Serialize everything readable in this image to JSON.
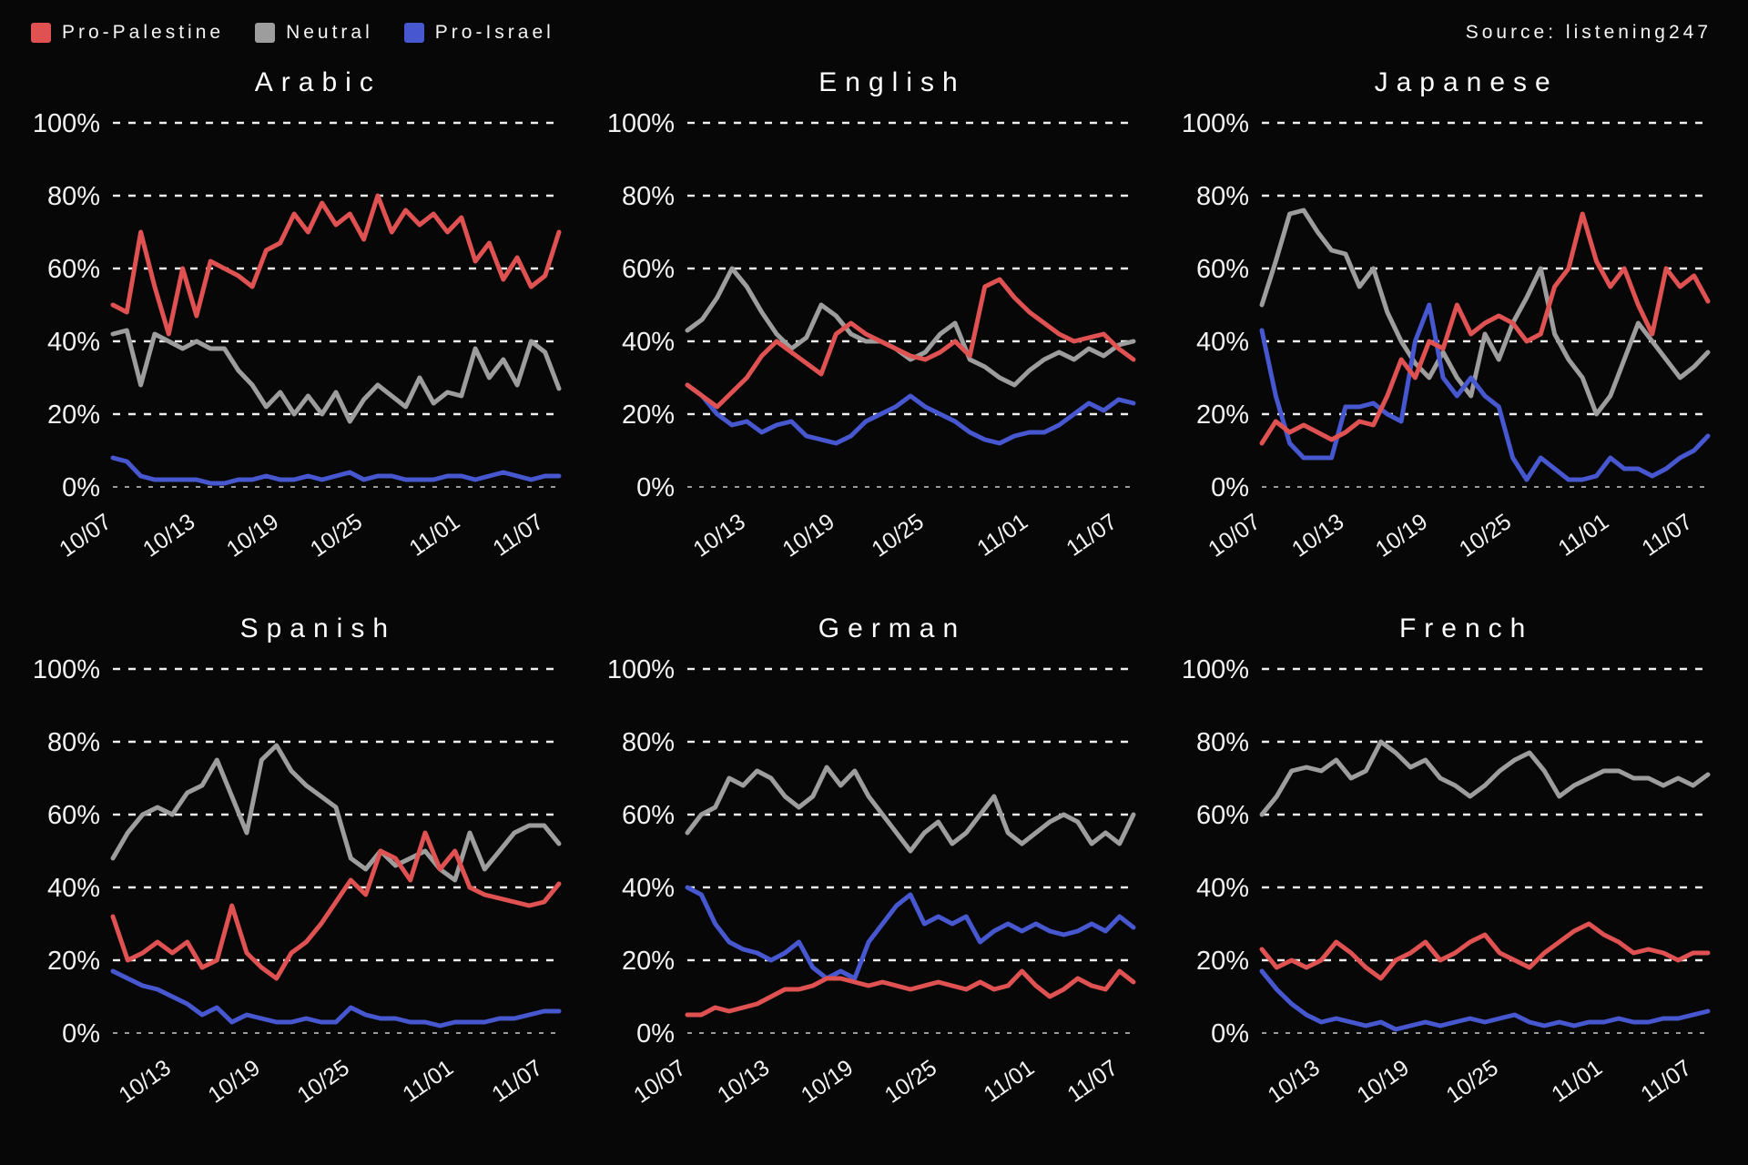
{
  "header": {
    "source": "Source: listening247"
  },
  "legend": {
    "items": [
      {
        "label": "Pro-Palestine",
        "color": "#e05252"
      },
      {
        "label": "Neutral",
        "color": "#9d9d9d"
      },
      {
        "label": "Pro-Israel",
        "color": "#4757cf"
      }
    ]
  },
  "chart_data": [
    {
      "type": "line",
      "title": "Arabic",
      "ylim": [
        0,
        100
      ],
      "y_ticks": [
        "0%",
        "20%",
        "40%",
        "60%",
        "80%",
        "100%"
      ],
      "x_ticks": [
        "10/07",
        "10/13",
        "10/19",
        "10/25",
        "11/01",
        "11/07"
      ],
      "x": [
        "10/07",
        "10/08",
        "10/09",
        "10/10",
        "10/11",
        "10/12",
        "10/13",
        "10/14",
        "10/15",
        "10/16",
        "10/17",
        "10/18",
        "10/19",
        "10/20",
        "10/21",
        "10/22",
        "10/23",
        "10/24",
        "10/25",
        "10/26",
        "10/27",
        "10/28",
        "10/29",
        "10/30",
        "10/31",
        "11/01",
        "11/02",
        "11/03",
        "11/04",
        "11/05",
        "11/06",
        "11/07",
        "11/08"
      ],
      "series": [
        {
          "name": "Pro-Palestine",
          "color": "#e05252",
          "values": [
            50,
            48,
            70,
            55,
            42,
            60,
            47,
            62,
            60,
            58,
            55,
            65,
            67,
            75,
            70,
            78,
            72,
            75,
            68,
            80,
            70,
            76,
            72,
            75,
            70,
            74,
            62,
            67,
            57,
            63,
            55,
            58,
            70
          ]
        },
        {
          "name": "Neutral",
          "color": "#9d9d9d",
          "values": [
            42,
            43,
            28,
            42,
            40,
            38,
            40,
            38,
            38,
            32,
            28,
            22,
            26,
            20,
            25,
            20,
            26,
            18,
            24,
            28,
            25,
            22,
            30,
            23,
            26,
            25,
            38,
            30,
            35,
            28,
            40,
            37,
            27
          ]
        },
        {
          "name": "Pro-Israel",
          "color": "#4757cf",
          "values": [
            8,
            7,
            3,
            2,
            2,
            2,
            2,
            1,
            1,
            2,
            2,
            3,
            2,
            2,
            3,
            2,
            3,
            4,
            2,
            3,
            3,
            2,
            2,
            2,
            3,
            3,
            2,
            3,
            4,
            3,
            2,
            3,
            3
          ]
        }
      ]
    },
    {
      "type": "line",
      "title": "English",
      "ylim": [
        0,
        100
      ],
      "y_ticks": [
        "0%",
        "20%",
        "40%",
        "60%",
        "80%",
        "100%"
      ],
      "x_ticks": [
        "10/13",
        "10/19",
        "10/25",
        "11/01",
        "11/07"
      ],
      "x": [
        "10/09",
        "10/10",
        "10/11",
        "10/12",
        "10/13",
        "10/14",
        "10/15",
        "10/16",
        "10/17",
        "10/18",
        "10/19",
        "10/20",
        "10/21",
        "10/22",
        "10/23",
        "10/24",
        "10/25",
        "10/26",
        "10/27",
        "10/28",
        "10/29",
        "10/30",
        "10/31",
        "11/01",
        "11/02",
        "11/03",
        "11/04",
        "11/05",
        "11/06",
        "11/07",
        "11/08"
      ],
      "series": [
        {
          "name": "Pro-Palestine",
          "color": "#e05252",
          "values": [
            28,
            25,
            22,
            26,
            30,
            36,
            40,
            37,
            34,
            31,
            42,
            45,
            42,
            40,
            38,
            36,
            35,
            37,
            40,
            36,
            55,
            57,
            52,
            48,
            45,
            42,
            40,
            41,
            42,
            38,
            35
          ]
        },
        {
          "name": "Neutral",
          "color": "#9d9d9d",
          "values": [
            43,
            46,
            52,
            60,
            55,
            48,
            42,
            38,
            41,
            50,
            47,
            42,
            40,
            40,
            38,
            35,
            37,
            42,
            45,
            35,
            33,
            30,
            28,
            32,
            35,
            37,
            35,
            38,
            36,
            39,
            40
          ]
        },
        {
          "name": "Pro-Israel",
          "color": "#4757cf",
          "values": [
            28,
            25,
            20,
            17,
            18,
            15,
            17,
            18,
            14,
            13,
            12,
            14,
            18,
            20,
            22,
            25,
            22,
            20,
            18,
            15,
            13,
            12,
            14,
            15,
            15,
            17,
            20,
            23,
            21,
            24,
            23
          ]
        }
      ]
    },
    {
      "type": "line",
      "title": "Japanese",
      "ylim": [
        0,
        100
      ],
      "y_ticks": [
        "0%",
        "20%",
        "40%",
        "60%",
        "80%",
        "100%"
      ],
      "x_ticks": [
        "10/07",
        "10/13",
        "10/19",
        "10/25",
        "11/01",
        "11/07"
      ],
      "x": [
        "10/07",
        "10/08",
        "10/09",
        "10/10",
        "10/11",
        "10/12",
        "10/13",
        "10/14",
        "10/15",
        "10/16",
        "10/17",
        "10/18",
        "10/19",
        "10/20",
        "10/21",
        "10/22",
        "10/23",
        "10/24",
        "10/25",
        "10/26",
        "10/27",
        "10/28",
        "10/29",
        "10/30",
        "10/31",
        "11/01",
        "11/02",
        "11/03",
        "11/04",
        "11/05",
        "11/06",
        "11/07",
        "11/08"
      ],
      "series": [
        {
          "name": "Pro-Palestine",
          "color": "#e05252",
          "values": [
            12,
            18,
            15,
            17,
            15,
            13,
            15,
            18,
            17,
            25,
            35,
            30,
            40,
            38,
            50,
            42,
            45,
            47,
            45,
            40,
            42,
            55,
            60,
            75,
            62,
            55,
            60,
            50,
            42,
            60,
            55,
            58,
            51
          ]
        },
        {
          "name": "Neutral",
          "color": "#9d9d9d",
          "values": [
            50,
            62,
            75,
            76,
            70,
            65,
            64,
            55,
            60,
            48,
            40,
            34,
            30,
            37,
            30,
            25,
            42,
            35,
            45,
            52,
            60,
            42,
            35,
            30,
            20,
            25,
            35,
            45,
            40,
            35,
            30,
            33,
            37
          ]
        },
        {
          "name": "Pro-Israel",
          "color": "#4757cf",
          "values": [
            43,
            25,
            12,
            8,
            8,
            8,
            22,
            22,
            23,
            20,
            18,
            40,
            50,
            30,
            25,
            30,
            25,
            22,
            8,
            2,
            8,
            5,
            2,
            2,
            3,
            8,
            5,
            5,
            3,
            5,
            8,
            10,
            14
          ]
        }
      ]
    },
    {
      "type": "line",
      "title": "Spanish",
      "ylim": [
        0,
        100
      ],
      "y_ticks": [
        "0%",
        "20%",
        "40%",
        "60%",
        "80%",
        "100%"
      ],
      "x_ticks": [
        "10/13",
        "10/19",
        "10/25",
        "11/01",
        "11/07"
      ],
      "x": [
        "10/09",
        "10/10",
        "10/11",
        "10/12",
        "10/13",
        "10/14",
        "10/15",
        "10/16",
        "10/17",
        "10/18",
        "10/19",
        "10/20",
        "10/21",
        "10/22",
        "10/23",
        "10/24",
        "10/25",
        "10/26",
        "10/27",
        "10/28",
        "10/29",
        "10/30",
        "10/31",
        "11/01",
        "11/02",
        "11/03",
        "11/04",
        "11/05",
        "11/06",
        "11/07",
        "11/08"
      ],
      "series": [
        {
          "name": "Pro-Palestine",
          "color": "#e05252",
          "values": [
            32,
            20,
            22,
            25,
            22,
            25,
            18,
            20,
            35,
            22,
            18,
            15,
            22,
            25,
            30,
            36,
            42,
            38,
            50,
            48,
            42,
            55,
            45,
            50,
            40,
            38,
            37,
            36,
            35,
            36,
            41
          ]
        },
        {
          "name": "Neutral",
          "color": "#9d9d9d",
          "values": [
            48,
            55,
            60,
            62,
            60,
            66,
            68,
            75,
            65,
            55,
            75,
            79,
            72,
            68,
            65,
            62,
            48,
            45,
            50,
            46,
            48,
            50,
            45,
            42,
            55,
            45,
            50,
            55,
            57,
            57,
            52
          ]
        },
        {
          "name": "Pro-Israel",
          "color": "#4757cf",
          "values": [
            17,
            15,
            13,
            12,
            10,
            8,
            5,
            7,
            3,
            5,
            4,
            3,
            3,
            4,
            3,
            3,
            7,
            5,
            4,
            4,
            3,
            3,
            2,
            3,
            3,
            3,
            4,
            4,
            5,
            6,
            6
          ]
        }
      ]
    },
    {
      "type": "line",
      "title": "German",
      "ylim": [
        0,
        100
      ],
      "y_ticks": [
        "0%",
        "20%",
        "40%",
        "60%",
        "80%",
        "100%"
      ],
      "x_ticks": [
        "10/07",
        "10/13",
        "10/19",
        "10/25",
        "11/01",
        "11/07"
      ],
      "x": [
        "10/07",
        "10/08",
        "10/09",
        "10/10",
        "10/11",
        "10/12",
        "10/13",
        "10/14",
        "10/15",
        "10/16",
        "10/17",
        "10/18",
        "10/19",
        "10/20",
        "10/21",
        "10/22",
        "10/23",
        "10/24",
        "10/25",
        "10/26",
        "10/27",
        "10/28",
        "10/29",
        "10/30",
        "10/31",
        "11/01",
        "11/02",
        "11/03",
        "11/04",
        "11/05",
        "11/06",
        "11/07",
        "11/08"
      ],
      "series": [
        {
          "name": "Pro-Palestine",
          "color": "#e05252",
          "values": [
            5,
            5,
            7,
            6,
            7,
            8,
            10,
            12,
            12,
            13,
            15,
            15,
            14,
            13,
            14,
            13,
            12,
            13,
            14,
            13,
            12,
            14,
            12,
            13,
            17,
            13,
            10,
            12,
            15,
            13,
            12,
            17,
            14
          ]
        },
        {
          "name": "Neutral",
          "color": "#9d9d9d",
          "values": [
            55,
            60,
            62,
            70,
            68,
            72,
            70,
            65,
            62,
            65,
            73,
            68,
            72,
            65,
            60,
            55,
            50,
            55,
            58,
            52,
            55,
            60,
            65,
            55,
            52,
            55,
            58,
            60,
            58,
            52,
            55,
            52,
            60
          ]
        },
        {
          "name": "Pro-Israel",
          "color": "#4757cf",
          "values": [
            40,
            38,
            30,
            25,
            23,
            22,
            20,
            22,
            25,
            18,
            15,
            17,
            15,
            25,
            30,
            35,
            38,
            30,
            32,
            30,
            32,
            25,
            28,
            30,
            28,
            30,
            28,
            27,
            28,
            30,
            28,
            32,
            29
          ]
        }
      ]
    },
    {
      "type": "line",
      "title": "French",
      "ylim": [
        0,
        100
      ],
      "y_ticks": [
        "0%",
        "20%",
        "40%",
        "60%",
        "80%",
        "100%"
      ],
      "x_ticks": [
        "10/13",
        "10/19",
        "10/25",
        "11/01",
        "11/07"
      ],
      "x": [
        "10/09",
        "10/10",
        "10/11",
        "10/12",
        "10/13",
        "10/14",
        "10/15",
        "10/16",
        "10/17",
        "10/18",
        "10/19",
        "10/20",
        "10/21",
        "10/22",
        "10/23",
        "10/24",
        "10/25",
        "10/26",
        "10/27",
        "10/28",
        "10/29",
        "10/30",
        "10/31",
        "11/01",
        "11/02",
        "11/03",
        "11/04",
        "11/05",
        "11/06",
        "11/07",
        "11/08"
      ],
      "series": [
        {
          "name": "Pro-Palestine",
          "color": "#e05252",
          "values": [
            23,
            18,
            20,
            18,
            20,
            25,
            22,
            18,
            15,
            20,
            22,
            25,
            20,
            22,
            25,
            27,
            22,
            20,
            18,
            22,
            25,
            28,
            30,
            27,
            25,
            22,
            23,
            22,
            20,
            22,
            22
          ]
        },
        {
          "name": "Neutral",
          "color": "#9d9d9d",
          "values": [
            60,
            65,
            72,
            73,
            72,
            75,
            70,
            72,
            80,
            77,
            73,
            75,
            70,
            68,
            65,
            68,
            72,
            75,
            77,
            72,
            65,
            68,
            70,
            72,
            72,
            70,
            70,
            68,
            70,
            68,
            71
          ]
        },
        {
          "name": "Pro-Israel",
          "color": "#4757cf",
          "values": [
            17,
            12,
            8,
            5,
            3,
            4,
            3,
            2,
            3,
            1,
            2,
            3,
            2,
            3,
            4,
            3,
            4,
            5,
            3,
            2,
            3,
            2,
            3,
            3,
            4,
            3,
            3,
            4,
            4,
            5,
            6
          ]
        }
      ]
    }
  ]
}
